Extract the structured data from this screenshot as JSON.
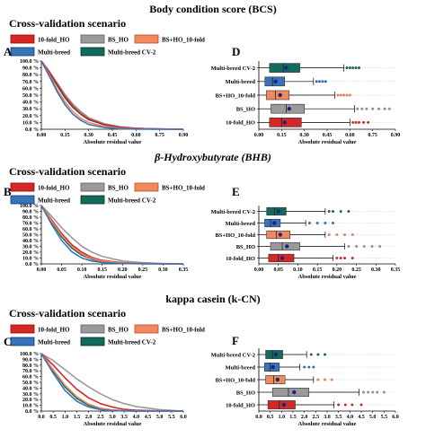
{
  "colors": {
    "ho10": "#d62728",
    "bs_ho": "#9a9a9a",
    "bs_ho10": "#f08a5d",
    "multi": "#3a73b8",
    "mbcv2": "#126b5c"
  },
  "sections": [
    {
      "title": "Body condition score (BCS)",
      "title_italic": false,
      "scenario_label": "Cross-validation scenario",
      "legend": [
        {
          "key": "ho10",
          "label": "10-fold_HO"
        },
        {
          "key": "bs_ho",
          "label": "BS_HO"
        },
        {
          "key": "bs_ho10",
          "label": "BS+HO_10-fold"
        },
        {
          "key": "multi",
          "label": "Multi-breed"
        },
        {
          "key": "mbcv2",
          "label": "Multi-breed CV-2"
        }
      ]
    },
    {
      "title": "β-Hydroxybutyrate (BHB)",
      "title_italic": true,
      "scenario_label": "Cross-validation scenario",
      "legend": [
        {
          "key": "ho10",
          "label": "10-fold_HO"
        },
        {
          "key": "bs_ho",
          "label": "BS_HO"
        },
        {
          "key": "bs_ho10",
          "label": "BS+HO_10-fold"
        },
        {
          "key": "multi",
          "label": "Multi-breed"
        },
        {
          "key": "mbcv2",
          "label": "Multi-breed CV-2"
        }
      ]
    },
    {
      "title": "kappa casein (k-CN)",
      "title_italic": false,
      "scenario_label": "Cross-validation scenario",
      "legend": [
        {
          "key": "ho10",
          "label": "10-fold_HO"
        },
        {
          "key": "bs_ho",
          "label": "BS_HO"
        },
        {
          "key": "bs_ho10",
          "label": "BS+HO_10-fold"
        },
        {
          "key": "multi",
          "label": "Multi-breed"
        },
        {
          "key": "mbcv2",
          "label": "Multi-breed CV-2"
        }
      ]
    }
  ],
  "chart_data": [
    {
      "panel": "A",
      "type": "line",
      "xlabel": "Absolute residual value",
      "ylabel": "",
      "xlim": [
        0,
        0.9
      ],
      "ylim": [
        0,
        100
      ],
      "xticks": [
        "0.00",
        "0.15",
        "0.30",
        "0.45",
        "0.60",
        "0.75",
        "0.90"
      ],
      "yticks": [
        "0.0 %",
        "10.0 %",
        "20.0 %",
        "30.0 %",
        "40.0 %",
        "50.0 %",
        "60.0 %",
        "70.0 %",
        "80.0 %",
        "90.0 %",
        "100.0 %"
      ],
      "series": [
        {
          "key": "ho10",
          "name": "10-fold_HO",
          "x": [
            0,
            0.05,
            0.1,
            0.15,
            0.2,
            0.25,
            0.3,
            0.4,
            0.5,
            0.6,
            0.7,
            0.8,
            0.9
          ],
          "y": [
            100,
            84,
            66,
            48,
            34,
            23,
            15,
            7,
            3,
            1.5,
            0.7,
            0.3,
            0
          ]
        },
        {
          "key": "bs_ho",
          "name": "BS_HO",
          "x": [
            0,
            0.05,
            0.1,
            0.15,
            0.2,
            0.25,
            0.3,
            0.4,
            0.5,
            0.6,
            0.7,
            0.8,
            0.9
          ],
          "y": [
            100,
            85,
            68,
            51,
            37,
            26,
            17,
            8,
            3.5,
            1.5,
            0.7,
            0.3,
            0
          ]
        },
        {
          "key": "bs_ho10",
          "name": "BS+HO_10-fold",
          "x": [
            0,
            0.05,
            0.1,
            0.15,
            0.2,
            0.25,
            0.3,
            0.4,
            0.5,
            0.6,
            0.7,
            0.8,
            0.9
          ],
          "y": [
            100,
            80,
            58,
            40,
            26,
            16,
            10,
            4,
            1.5,
            0.5,
            0.2,
            0.1,
            0
          ]
        },
        {
          "key": "multi",
          "name": "Multi-breed",
          "x": [
            0,
            0.05,
            0.1,
            0.15,
            0.2,
            0.25,
            0.3,
            0.4,
            0.5,
            0.6,
            0.7,
            0.8,
            0.9
          ],
          "y": [
            100,
            78,
            55,
            36,
            22,
            13,
            7,
            2.5,
            0.8,
            0.3,
            0.1,
            0,
            0
          ]
        },
        {
          "key": "mbcv2",
          "name": "Multi-breed CV-2",
          "x": [
            0,
            0.05,
            0.1,
            0.15,
            0.2,
            0.25,
            0.3,
            0.4,
            0.5,
            0.6,
            0.7,
            0.8,
            0.9
          ],
          "y": [
            100,
            83,
            64,
            46,
            32,
            22,
            14,
            6.5,
            2.8,
            1.2,
            0.5,
            0.2,
            0
          ]
        }
      ]
    },
    {
      "panel": "D",
      "type": "box",
      "xlabel": "Absolute residual value",
      "xlim": [
        0,
        0.9
      ],
      "xticks": [
        "0.00",
        "0.15",
        "0.30",
        "0.45",
        "0.60",
        "0.75",
        "0.90"
      ],
      "categories": [
        "Multi-breed CV-2",
        "Multi-breed",
        "BS+HO_10-fold",
        "BS_HO",
        "10-fold_HO"
      ],
      "boxes": [
        {
          "key": "mbcv2",
          "name": "Multi-breed CV-2",
          "min": 0,
          "q1": 0.07,
          "median": 0.16,
          "q3": 0.27,
          "max": 0.56,
          "mean": 0.18,
          "outliers": [
            0.58,
            0.6,
            0.62,
            0.64,
            0.66
          ]
        },
        {
          "key": "multi",
          "name": "Multi-breed",
          "min": 0,
          "q1": 0.04,
          "median": 0.09,
          "q3": 0.17,
          "max": 0.36,
          "mean": 0.11,
          "outliers": [
            0.38,
            0.4,
            0.42,
            0.44
          ]
        },
        {
          "key": "bs_ho10",
          "name": "BS+HO_10-fold",
          "min": 0,
          "q1": 0.05,
          "median": 0.11,
          "q3": 0.2,
          "max": 0.5,
          "mean": 0.14,
          "outliers": [
            0.52,
            0.54,
            0.56,
            0.58,
            0.6
          ]
        },
        {
          "key": "bs_ho",
          "name": "BS_HO",
          "min": 0,
          "q1": 0.08,
          "median": 0.18,
          "q3": 0.3,
          "max": 0.63,
          "mean": 0.2,
          "outliers": [
            0.65,
            0.68,
            0.71,
            0.75,
            0.79,
            0.83,
            0.86
          ]
        },
        {
          "key": "ho10",
          "name": "10-fold_HO",
          "min": 0,
          "q1": 0.07,
          "median": 0.15,
          "q3": 0.28,
          "max": 0.6,
          "mean": 0.17,
          "outliers": [
            0.62,
            0.64,
            0.66,
            0.69,
            0.72
          ]
        }
      ]
    },
    {
      "panel": "B",
      "type": "line",
      "xlabel": "Absolute residual value",
      "ylabel": "",
      "xlim": [
        0,
        0.35
      ],
      "ylim": [
        0,
        100
      ],
      "xticks": [
        "0.00",
        "0.05",
        "0.10",
        "0.15",
        "0.20",
        "0.25",
        "0.30",
        "0.35"
      ],
      "yticks": [
        "0.0 %",
        "10.0 %",
        "20.0 %",
        "30.0 %",
        "40.0 %",
        "50.0 %",
        "60.0 %",
        "70.0 %",
        "80.0 %",
        "90.0 %",
        "100.0 %"
      ],
      "series": [
        {
          "key": "ho10",
          "name": "10-fold_HO",
          "x": [
            0,
            0.025,
            0.05,
            0.075,
            0.1,
            0.125,
            0.15,
            0.2,
            0.25,
            0.3,
            0.35
          ],
          "y": [
            100,
            76,
            52,
            33,
            20,
            11,
            6,
            2,
            0.6,
            0.2,
            0
          ]
        },
        {
          "key": "bs_ho",
          "name": "BS_HO",
          "x": [
            0,
            0.025,
            0.05,
            0.075,
            0.1,
            0.125,
            0.15,
            0.2,
            0.25,
            0.3,
            0.35
          ],
          "y": [
            100,
            82,
            62,
            45,
            30,
            20,
            13,
            5,
            2,
            0.6,
            0
          ]
        },
        {
          "key": "bs_ho10",
          "name": "BS+HO_10-fold",
          "x": [
            0,
            0.025,
            0.05,
            0.075,
            0.1,
            0.125,
            0.15,
            0.2,
            0.25,
            0.3,
            0.35
          ],
          "y": [
            100,
            74,
            49,
            30,
            17,
            9,
            5,
            1.5,
            0.5,
            0.1,
            0
          ]
        },
        {
          "key": "multi",
          "name": "Multi-breed",
          "x": [
            0,
            0.025,
            0.05,
            0.075,
            0.1,
            0.125,
            0.15,
            0.2,
            0.25,
            0.3,
            0.35
          ],
          "y": [
            100,
            68,
            40,
            21,
            10,
            5,
            2.5,
            0.6,
            0.2,
            0,
            0
          ]
        },
        {
          "key": "mbcv2",
          "name": "Multi-breed CV-2",
          "x": [
            0,
            0.025,
            0.05,
            0.075,
            0.1,
            0.125,
            0.15,
            0.2,
            0.25,
            0.3,
            0.35
          ],
          "y": [
            100,
            72,
            46,
            27,
            15,
            8,
            4,
            1.2,
            0.4,
            0.1,
            0
          ]
        }
      ]
    },
    {
      "panel": "E",
      "type": "box",
      "xlabel": "Absolute residual value",
      "xlim": [
        0,
        0.35
      ],
      "xticks": [
        "0.00",
        "0.05",
        "0.10",
        "0.15",
        "0.20",
        "0.25",
        "0.30",
        "0.35"
      ],
      "categories": [
        "Multi-breed CV-2",
        "Multi-breed",
        "BS+HO_10-fold",
        "BS_HO",
        "10-fold_HO"
      ],
      "boxes": [
        {
          "key": "mbcv2",
          "name": "Multi-breed CV-2",
          "min": 0,
          "q1": 0.02,
          "median": 0.04,
          "q3": 0.07,
          "max": 0.17,
          "mean": 0.05,
          "outliers": [
            0.18,
            0.19,
            0.21,
            0.23
          ]
        },
        {
          "key": "multi",
          "name": "Multi-breed",
          "min": 0,
          "q1": 0.015,
          "median": 0.03,
          "q3": 0.055,
          "max": 0.12,
          "mean": 0.04,
          "outliers": [
            0.13,
            0.15,
            0.17,
            0.19
          ]
        },
        {
          "key": "bs_ho10",
          "name": "BS+HO_10-fold",
          "min": 0,
          "q1": 0.02,
          "median": 0.045,
          "q3": 0.08,
          "max": 0.17,
          "mean": 0.055,
          "outliers": [
            0.18,
            0.2,
            0.22,
            0.24
          ]
        },
        {
          "key": "bs_ho",
          "name": "BS_HO",
          "min": 0,
          "q1": 0.03,
          "median": 0.06,
          "q3": 0.105,
          "max": 0.22,
          "mean": 0.072,
          "outliers": [
            0.23,
            0.25,
            0.27,
            0.29,
            0.31
          ]
        },
        {
          "key": "ho10",
          "name": "10-fold_HO",
          "min": 0,
          "q1": 0.025,
          "median": 0.05,
          "q3": 0.09,
          "max": 0.19,
          "mean": 0.06,
          "outliers": [
            0.2,
            0.21,
            0.22,
            0.24
          ]
        }
      ]
    },
    {
      "panel": "C",
      "type": "line",
      "xlabel": "Absolute residual value",
      "ylabel": "",
      "xlim": [
        0,
        6.0
      ],
      "ylim": [
        0,
        100
      ],
      "xticks": [
        "0.0",
        "0.5",
        "1.0",
        "1.5",
        "2.0",
        "2.5",
        "3.0",
        "3.5",
        "4.0",
        "4.5",
        "5.0",
        "5.5",
        "6.0"
      ],
      "yticks": [
        "0.0 %",
        "10.0 %",
        "20.0 %",
        "30.0 %",
        "40.0 %",
        "50.0 %",
        "60.0 %",
        "70.0 %",
        "80.0 %",
        "90.0 %",
        "100.0 %"
      ],
      "series": [
        {
          "key": "ho10",
          "name": "10-fold_HO",
          "x": [
            0,
            0.5,
            1.0,
            1.5,
            2.0,
            2.5,
            3.0,
            3.5,
            4.0,
            5.0,
            6.0
          ],
          "y": [
            100,
            80,
            58,
            38,
            23,
            13,
            7,
            3,
            1.5,
            0.3,
            0
          ]
        },
        {
          "key": "bs_ho",
          "name": "BS_HO",
          "x": [
            0,
            0.5,
            1.0,
            1.5,
            2.0,
            2.5,
            3.0,
            3.5,
            4.0,
            5.0,
            6.0
          ],
          "y": [
            100,
            88,
            72,
            56,
            42,
            30,
            20,
            13,
            8,
            2.5,
            0
          ]
        },
        {
          "key": "bs_ho10",
          "name": "BS+HO_10-fold",
          "x": [
            0,
            0.5,
            1.0,
            1.5,
            2.0,
            2.5,
            3.0,
            3.5,
            4.0,
            5.0,
            6.0
          ],
          "y": [
            100,
            72,
            45,
            25,
            12,
            5,
            2,
            0.8,
            0.3,
            0,
            0
          ]
        },
        {
          "key": "multi",
          "name": "Multi-breed",
          "x": [
            0,
            0.5,
            1.0,
            1.5,
            2.0,
            2.5,
            3.0,
            3.5,
            4.0,
            5.0,
            6.0
          ],
          "y": [
            100,
            66,
            36,
            17,
            7,
            2.5,
            1,
            0.3,
            0.1,
            0,
            0
          ]
        },
        {
          "key": "mbcv2",
          "name": "Multi-breed CV-2",
          "x": [
            0,
            0.5,
            1.0,
            1.5,
            2.0,
            2.5,
            3.0,
            3.5,
            4.0,
            5.0,
            6.0
          ],
          "y": [
            100,
            70,
            42,
            22,
            10,
            4,
            1.5,
            0.5,
            0.2,
            0,
            0
          ]
        }
      ]
    },
    {
      "panel": "F",
      "type": "box",
      "xlabel": "Absolute residual value",
      "xlim": [
        0,
        6.0
      ],
      "xticks": [
        "0.0",
        "0.5",
        "1.0",
        "1.5",
        "2.0",
        "2.5",
        "3.0",
        "3.5",
        "4.0",
        "4.5",
        "5.0",
        "5.5",
        "6.0"
      ],
      "categories": [
        "Multi-breed CV-2",
        "Multi-breed",
        "BS+HO_10-fold",
        "BS_HO",
        "10-fold_HO"
      ],
      "boxes": [
        {
          "key": "mbcv2",
          "name": "Multi-breed CV-2",
          "min": 0,
          "q1": 0.3,
          "median": 0.6,
          "q3": 1.05,
          "max": 2.1,
          "mean": 0.75,
          "outliers": [
            2.3,
            2.6,
            2.9
          ]
        },
        {
          "key": "multi",
          "name": "Multi-breed",
          "min": 0,
          "q1": 0.25,
          "median": 0.5,
          "q3": 0.9,
          "max": 1.8,
          "mean": 0.62,
          "outliers": [
            2.0,
            2.2,
            2.4
          ]
        },
        {
          "key": "bs_ho10",
          "name": "BS+HO_10-fold",
          "min": 0,
          "q1": 0.3,
          "median": 0.65,
          "q3": 1.15,
          "max": 2.4,
          "mean": 0.82,
          "outliers": [
            2.6,
            2.9,
            3.2
          ]
        },
        {
          "key": "bs_ho",
          "name": "BS_HO",
          "min": 0,
          "q1": 0.6,
          "median": 1.3,
          "q3": 2.2,
          "max": 4.4,
          "mean": 1.55,
          "outliers": [
            4.6,
            4.8,
            5.0,
            5.2,
            5.5
          ]
        },
        {
          "key": "ho10",
          "name": "10-fold_HO",
          "min": 0,
          "q1": 0.4,
          "median": 0.9,
          "q3": 1.6,
          "max": 3.3,
          "mean": 1.1,
          "outliers": [
            3.5,
            3.8,
            4.1,
            4.5
          ]
        }
      ]
    }
  ]
}
